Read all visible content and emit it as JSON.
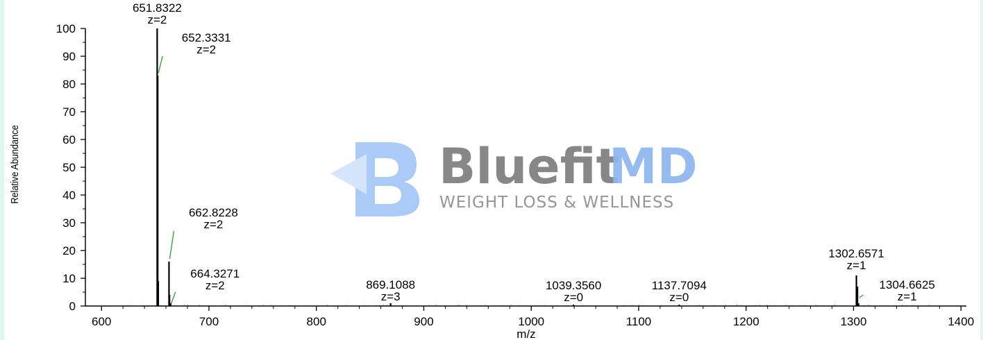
{
  "chart_data": {
    "type": "bar",
    "xlabel": "m/z",
    "ylabel": "Relative Abundance",
    "xlim": [
      585,
      1405
    ],
    "ylim": [
      0,
      100
    ],
    "x_ticks": [
      "600",
      "700",
      "800",
      "900",
      "1000",
      "1100",
      "1200",
      "1300",
      "1400"
    ],
    "y_ticks": [
      "0",
      "10",
      "20",
      "30",
      "40",
      "50",
      "60",
      "70",
      "80",
      "90",
      "100"
    ],
    "grid": false,
    "peaks": [
      {
        "mz": 651.8322,
        "value": 100,
        "mz_label": "651.8322",
        "z_label": "z=2"
      },
      {
        "mz": 652.3331,
        "value": 83,
        "mz_label": "652.3331",
        "z_label": "z=2"
      },
      {
        "mz": 652.83,
        "value": 9
      },
      {
        "mz": 662.8228,
        "value": 16,
        "mz_label": "662.8228",
        "z_label": "z=2"
      },
      {
        "mz": 663.3,
        "value": 4
      },
      {
        "mz": 664.3271,
        "value": 1,
        "mz_label": "664.3271",
        "z_label": "z=2"
      },
      {
        "mz": 869.1088,
        "value": 1,
        "mz_label": "869.1088",
        "z_label": "z=3"
      },
      {
        "mz": 1039.356,
        "value": 0.5,
        "mz_label": "1039.3560",
        "z_label": "z=0"
      },
      {
        "mz": 1137.7094,
        "value": 0.5,
        "mz_label": "1137.7094",
        "z_label": "z=0"
      },
      {
        "mz": 1302.6571,
        "value": 11,
        "mz_label": "1302.6571",
        "z_label": "z=1"
      },
      {
        "mz": 1303.66,
        "value": 7
      },
      {
        "mz": 1304.6625,
        "value": 1,
        "mz_label": "1304.6625",
        "z_label": "z=1"
      }
    ]
  },
  "watermark": {
    "brand_part1": "Bluefit",
    "brand_part2": "MD",
    "tagline": "WEIGHT LOSS & WELLNESS",
    "colors": {
      "gray": "#7d7d7d",
      "blue": "#8eb6ef"
    }
  }
}
